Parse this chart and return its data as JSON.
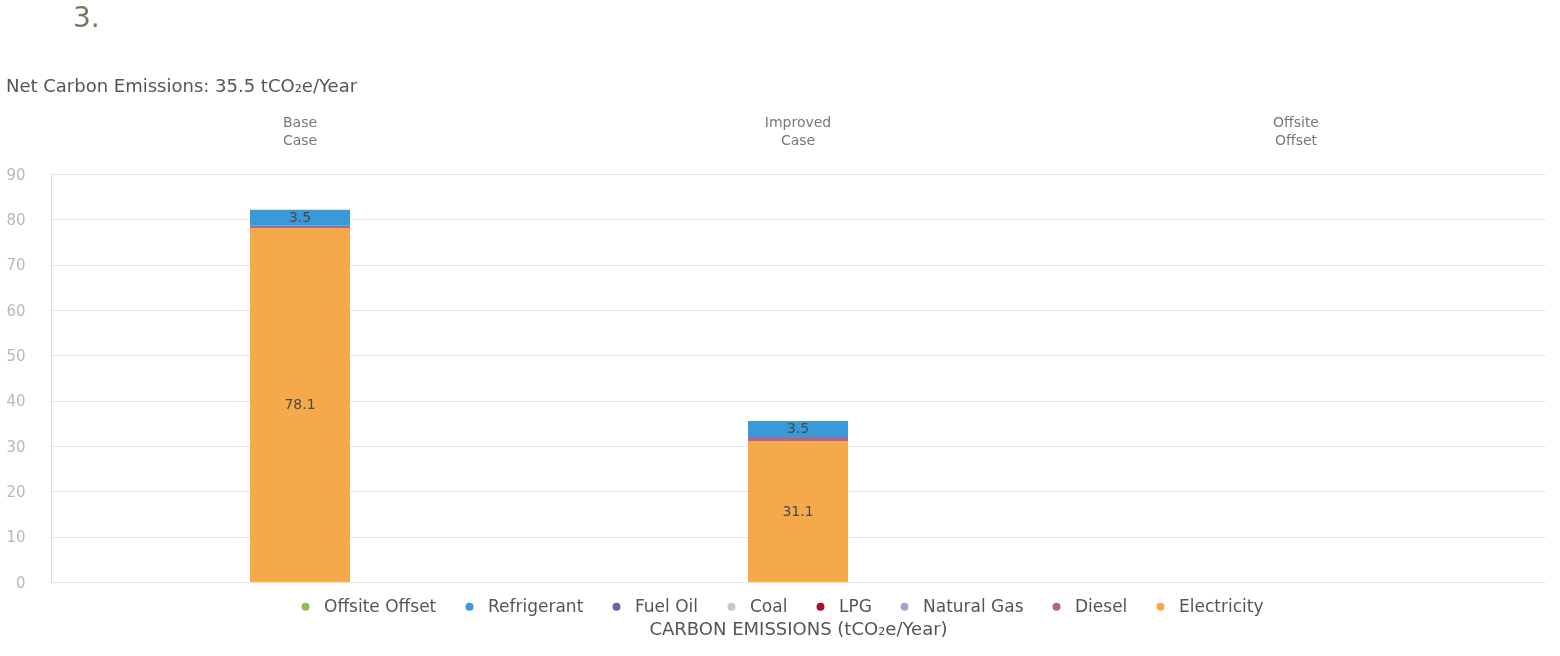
{
  "chart_data": {
    "type": "bar",
    "title": "Net Carbon Emissions: 35.5 tCO₂e/Year",
    "xlabel": "CARBON EMISSIONS (tCO₂e/Year)",
    "annotations": [
      "3."
    ],
    "categories": [
      "Base Case",
      "Improved Case",
      "Offsite Offset"
    ],
    "stacked": true,
    "series": [
      {
        "name": "Electricity",
        "color": "#f5a94a",
        "values": [
          78.1,
          31.1,
          null
        ],
        "value_labels": [
          "78.1",
          "31.1",
          null
        ]
      },
      {
        "name": "Diesel",
        "color": "#b06684",
        "values": [
          0.5,
          0.9,
          null
        ]
      },
      {
        "name": "Natural Gas",
        "color": "#a8a2cf",
        "values": [
          null,
          null,
          null
        ]
      },
      {
        "name": "LPG",
        "color": "#a5122d",
        "values": [
          null,
          null,
          null
        ]
      },
      {
        "name": "Coal",
        "color": "#c8c8c8",
        "values": [
          null,
          null,
          null
        ]
      },
      {
        "name": "Fuel Oil",
        "color": "#6b61a8",
        "values": [
          null,
          null,
          null
        ]
      },
      {
        "name": "Refrigerant",
        "color": "#3a9ad9",
        "values": [
          3.5,
          3.5,
          null
        ],
        "value_labels": [
          "3.5",
          "3.5",
          null
        ]
      },
      {
        "name": "Offsite Offset",
        "color": "#8fbf4f",
        "values": [
          null,
          null,
          null
        ]
      }
    ],
    "ylim": [
      0,
      90
    ],
    "yticks": [
      0,
      10,
      20,
      30,
      40,
      50,
      60,
      70,
      80,
      90
    ],
    "grid": "y",
    "legend": "bottom"
  }
}
